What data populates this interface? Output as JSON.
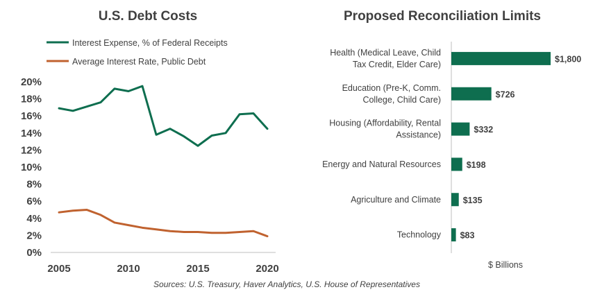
{
  "colors": {
    "green": "#0E6E4F",
    "orange": "#C0622F",
    "axis": "#BFBFBF",
    "text": "#404040"
  },
  "source": "Sources: U.S. Treasury, Haver Analytics, U.S. House of Representatives",
  "chart_data": [
    {
      "type": "line",
      "title": "U.S. Debt Costs",
      "x": [
        2005,
        2006,
        2007,
        2008,
        2009,
        2010,
        2011,
        2012,
        2013,
        2014,
        2015,
        2016,
        2017,
        2018,
        2019,
        2020
      ],
      "series": [
        {
          "name": "Interest Expense, % of Federal Receipts",
          "color": "#0E6E4F",
          "values": [
            16.9,
            16.6,
            17.1,
            17.6,
            19.2,
            18.9,
            19.5,
            13.8,
            14.5,
            13.6,
            12.5,
            13.7,
            14.0,
            16.2,
            16.3,
            14.5
          ]
        },
        {
          "name": "Average Interest Rate, Public Debt",
          "color": "#C0622F",
          "values": [
            4.7,
            4.9,
            5.0,
            4.4,
            3.5,
            3.2,
            2.9,
            2.7,
            2.5,
            2.4,
            2.4,
            2.3,
            2.3,
            2.4,
            2.5,
            1.9
          ]
        }
      ],
      "xticks": [
        "2005",
        "2010",
        "2015",
        "2020"
      ],
      "yticks": [
        "0%",
        "2%",
        "4%",
        "6%",
        "8%",
        "10%",
        "12%",
        "14%",
        "16%",
        "18%",
        "20%"
      ],
      "ylim": [
        0,
        20
      ],
      "xlim": [
        2005,
        2020
      ],
      "legend_position": "top-left",
      "grid": false
    },
    {
      "type": "bar",
      "orientation": "horizontal",
      "title": "Proposed Reconciliation Limits",
      "categories": [
        [
          "Health (Medical Leave, Child",
          "Tax Credit, Elder Care)"
        ],
        [
          "Education (Pre-K, Comm.",
          "College, Child Care)"
        ],
        [
          "Housing (Affordability, Rental",
          "Assistance)"
        ],
        [
          "Energy and Natural Resources"
        ],
        [
          "Agriculture and Climate"
        ],
        [
          "Technology"
        ]
      ],
      "values": [
        1800,
        726,
        332,
        198,
        135,
        83
      ],
      "value_labels": [
        "$1,800",
        "$726",
        "$332",
        "$198",
        "$135",
        "$83"
      ],
      "xlabel": "$ Billions",
      "color": "#0E6E4F",
      "grid": false
    }
  ]
}
